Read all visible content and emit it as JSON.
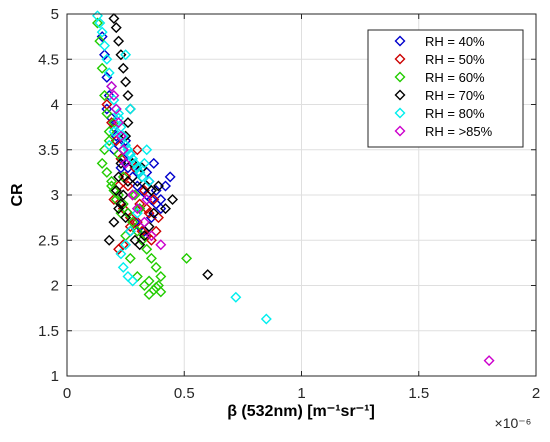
{
  "chart_data": {
    "type": "scatter",
    "title": "",
    "xlabel": "β (532nm) [m⁻¹sr⁻¹]",
    "ylabel": "CR",
    "x_multiplier_label": "×10⁻⁶",
    "xlim": [
      0,
      2
    ],
    "ylim": [
      1,
      5
    ],
    "x_ticks": [
      0,
      0.5,
      1,
      1.5,
      2
    ],
    "x_tick_labels": [
      "0",
      "0.5",
      "1",
      "1.5",
      "2"
    ],
    "y_ticks": [
      1,
      1.5,
      2,
      2.5,
      3,
      3.5,
      4,
      4.5,
      5
    ],
    "y_tick_labels": [
      "1",
      "1.5",
      "2",
      "2.5",
      "3",
      "3.5",
      "4",
      "4.5",
      "5"
    ],
    "grid": true,
    "legend_position": "top-right",
    "marker": "diamond",
    "series": [
      {
        "name": "RH = 40%",
        "color": "#0000cc",
        "x": [
          0.15,
          0.16,
          0.17,
          0.18,
          0.17,
          0.19,
          0.2,
          0.21,
          0.22,
          0.2,
          0.24,
          0.26,
          0.28,
          0.3,
          0.32,
          0.34,
          0.36,
          0.38,
          0.4,
          0.35,
          0.3,
          0.27,
          0.25,
          0.23,
          0.26,
          0.29,
          0.31,
          0.33,
          0.36,
          0.38,
          0.42,
          0.44,
          0.4,
          0.37,
          0.34,
          0.31,
          0.28
        ],
        "y": [
          4.75,
          4.55,
          4.3,
          4.1,
          3.95,
          3.85,
          3.75,
          3.65,
          3.55,
          3.5,
          3.4,
          3.3,
          3.2,
          3.1,
          3.05,
          3.0,
          2.95,
          2.9,
          2.85,
          3.15,
          3.25,
          3.45,
          3.6,
          3.3,
          2.8,
          2.7,
          2.65,
          2.6,
          2.75,
          3.05,
          3.1,
          3.2,
          2.95,
          3.35,
          3.25,
          2.85,
          3.0
        ]
      },
      {
        "name": "RH = 50%",
        "color": "#cc0000",
        "x": [
          0.17,
          0.19,
          0.21,
          0.23,
          0.25,
          0.22,
          0.2,
          0.24,
          0.27,
          0.3,
          0.32,
          0.34,
          0.36,
          0.38,
          0.31,
          0.28,
          0.26,
          0.29,
          0.33,
          0.37,
          0.35,
          0.27,
          0.24,
          0.22,
          0.3,
          0.34,
          0.39
        ],
        "y": [
          4.0,
          3.8,
          3.6,
          3.4,
          3.2,
          3.1,
          2.95,
          2.85,
          2.75,
          2.7,
          2.6,
          2.55,
          2.5,
          2.6,
          2.9,
          3.0,
          3.1,
          3.3,
          3.05,
          2.95,
          2.8,
          2.65,
          2.45,
          2.4,
          3.5,
          2.85,
          2.75
        ]
      },
      {
        "name": "RH = 60%",
        "color": "#22cc00",
        "x": [
          0.13,
          0.14,
          0.15,
          0.16,
          0.17,
          0.18,
          0.16,
          0.15,
          0.17,
          0.19,
          0.2,
          0.22,
          0.24,
          0.26,
          0.28,
          0.3,
          0.32,
          0.34,
          0.36,
          0.38,
          0.4,
          0.39,
          0.37,
          0.35,
          0.33,
          0.3,
          0.27,
          0.25,
          0.23,
          0.21,
          0.19,
          0.18,
          0.2,
          0.22,
          0.24,
          0.29,
          0.31,
          0.35,
          0.38,
          0.4,
          0.51
        ],
        "y": [
          4.9,
          4.7,
          4.4,
          4.1,
          3.9,
          3.7,
          3.5,
          3.35,
          3.25,
          3.15,
          3.05,
          3.0,
          2.9,
          2.8,
          2.7,
          2.6,
          2.5,
          2.4,
          2.3,
          2.2,
          2.1,
          2.0,
          1.95,
          1.9,
          2.0,
          2.1,
          2.3,
          2.55,
          2.8,
          2.95,
          3.1,
          3.6,
          3.8,
          3.45,
          3.2,
          3.0,
          2.85,
          2.05,
          1.98,
          1.93,
          2.3
        ]
      },
      {
        "name": "RH = 70%",
        "color": "#000000",
        "x": [
          0.2,
          0.21,
          0.22,
          0.23,
          0.24,
          0.25,
          0.26,
          0.27,
          0.26,
          0.25,
          0.24,
          0.23,
          0.22,
          0.21,
          0.23,
          0.25,
          0.27,
          0.29,
          0.31,
          0.33,
          0.35,
          0.37,
          0.34,
          0.31,
          0.28,
          0.26,
          0.24,
          0.22,
          0.2,
          0.18,
          0.3,
          0.32,
          0.36,
          0.39,
          0.42,
          0.45,
          0.6
        ],
        "y": [
          4.95,
          4.85,
          4.7,
          4.55,
          4.4,
          4.25,
          4.1,
          3.95,
          3.8,
          3.65,
          3.5,
          3.35,
          3.2,
          3.05,
          2.9,
          2.75,
          2.6,
          2.5,
          2.45,
          2.55,
          2.65,
          2.8,
          3.1,
          3.25,
          3.35,
          3.15,
          3.0,
          2.85,
          2.7,
          2.5,
          3.15,
          3.3,
          3.05,
          3.1,
          2.85,
          2.95,
          2.12
        ]
      },
      {
        "name": "RH = 80%",
        "color": "#00eeee",
        "x": [
          0.13,
          0.14,
          0.15,
          0.16,
          0.17,
          0.18,
          0.19,
          0.2,
          0.21,
          0.22,
          0.23,
          0.24,
          0.25,
          0.26,
          0.27,
          0.28,
          0.29,
          0.3,
          0.31,
          0.32,
          0.33,
          0.34,
          0.35,
          0.3,
          0.27,
          0.25,
          0.23,
          0.24,
          0.26,
          0.28,
          0.22,
          0.2,
          0.18,
          0.25,
          0.27,
          0.72,
          0.85
        ],
        "y": [
          4.98,
          4.9,
          4.8,
          4.65,
          4.5,
          4.35,
          4.2,
          4.05,
          3.95,
          3.85,
          3.75,
          3.65,
          3.55,
          3.5,
          3.45,
          3.4,
          3.35,
          3.3,
          3.25,
          3.2,
          3.35,
          3.5,
          3.15,
          2.8,
          2.6,
          2.45,
          2.35,
          2.2,
          2.1,
          2.05,
          3.9,
          3.7,
          3.55,
          4.55,
          3.95,
          1.87,
          1.63
        ]
      },
      {
        "name": "RH = >85%",
        "color": "#cc00cc",
        "x": [
          0.19,
          0.2,
          0.21,
          0.22,
          0.23,
          0.24,
          0.25,
          0.28,
          0.3,
          0.33,
          0.36,
          0.4,
          0.34,
          1.8
        ],
        "y": [
          4.2,
          4.1,
          3.95,
          3.8,
          3.65,
          3.5,
          3.35,
          3.0,
          2.85,
          2.7,
          2.55,
          2.45,
          2.95,
          1.17
        ]
      }
    ]
  }
}
